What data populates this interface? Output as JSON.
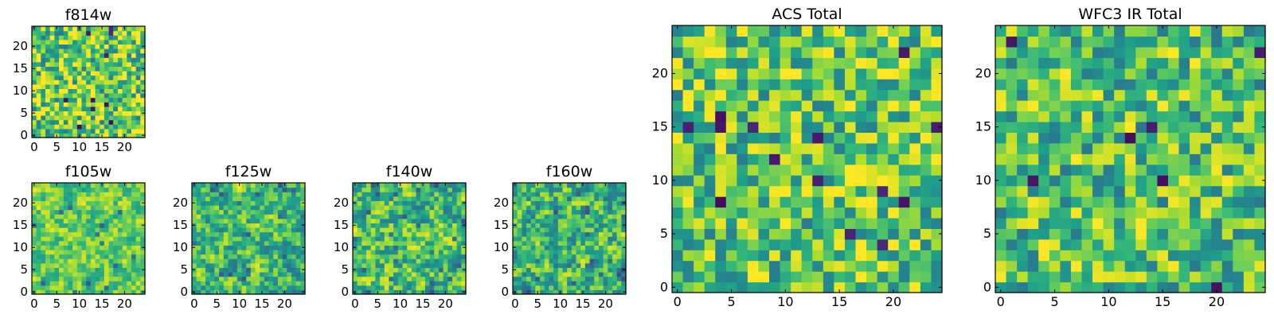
{
  "figure": {
    "colormap": "viridis",
    "colors": {
      "viridis": [
        "#440154",
        "#482878",
        "#3e4989",
        "#31688e",
        "#26828e",
        "#1f9e89",
        "#35b779",
        "#6ece58",
        "#b5de2b",
        "#fde725"
      ],
      "axis": "#000000",
      "background": "#ffffff"
    }
  },
  "chart_data": [
    {
      "id": "f814w",
      "type": "heatmap",
      "title": "f814w",
      "grid_size": [
        25,
        25
      ],
      "xlim": [
        0,
        24
      ],
      "ylim": [
        0,
        24
      ],
      "xticks": [
        "0",
        "5",
        "10",
        "15",
        "20"
      ],
      "yticks": [
        "0",
        "5",
        "10",
        "15",
        "20"
      ],
      "seed": 11,
      "mean": 0.75,
      "spread": 0.42,
      "dark_frac": 0.02,
      "smooth": 0
    },
    {
      "id": "acs-total",
      "type": "heatmap",
      "title": "ACS Total",
      "grid_size": [
        25,
        25
      ],
      "xlim": [
        0,
        24
      ],
      "ylim": [
        0,
        24
      ],
      "xticks": [
        "0",
        "5",
        "10",
        "15",
        "20"
      ],
      "yticks": [
        "0",
        "5",
        "10",
        "15",
        "20"
      ],
      "seed": 23,
      "mean": 0.74,
      "spread": 0.4,
      "dark_frac": 0.015,
      "smooth": 0
    },
    {
      "id": "wfc3-ir-total",
      "type": "heatmap",
      "title": "WFC3 IR Total",
      "grid_size": [
        25,
        25
      ],
      "xlim": [
        0,
        24
      ],
      "ylim": [
        0,
        24
      ],
      "xticks": [
        "0",
        "5",
        "10",
        "15",
        "20"
      ],
      "yticks": [
        "0",
        "5",
        "10",
        "15",
        "20"
      ],
      "seed": 37,
      "mean": 0.7,
      "spread": 0.38,
      "dark_frac": 0.015,
      "smooth": 0
    },
    {
      "id": "f105w",
      "type": "heatmap",
      "title": "f105w",
      "grid_size": [
        25,
        25
      ],
      "xlim": [
        0,
        24
      ],
      "ylim": [
        0,
        24
      ],
      "xticks": [
        "0",
        "5",
        "10",
        "15",
        "20"
      ],
      "yticks": [
        "0",
        "5",
        "10",
        "15",
        "20"
      ],
      "seed": 41,
      "mean": 0.76,
      "spread": 0.38,
      "dark_frac": 0.02,
      "smooth": 1
    },
    {
      "id": "f125w",
      "type": "heatmap",
      "title": "f125w",
      "grid_size": [
        25,
        25
      ],
      "xlim": [
        0,
        24
      ],
      "ylim": [
        0,
        24
      ],
      "xticks": [
        "0",
        "5",
        "10",
        "15",
        "20"
      ],
      "yticks": [
        "0",
        "5",
        "10",
        "15",
        "20"
      ],
      "seed": 53,
      "mean": 0.68,
      "spread": 0.5,
      "dark_frac": 0.03,
      "smooth": 1
    },
    {
      "id": "f140w",
      "type": "heatmap",
      "title": "f140w",
      "grid_size": [
        25,
        25
      ],
      "xlim": [
        0,
        24
      ],
      "ylim": [
        0,
        24
      ],
      "xticks": [
        "0",
        "5",
        "10",
        "15",
        "20"
      ],
      "yticks": [
        "0",
        "5",
        "10",
        "15",
        "20"
      ],
      "seed": 67,
      "mean": 0.7,
      "spread": 0.5,
      "dark_frac": 0.03,
      "smooth": 1
    },
    {
      "id": "f160w",
      "type": "heatmap",
      "title": "f160w",
      "grid_size": [
        25,
        25
      ],
      "xlim": [
        0,
        24
      ],
      "ylim": [
        0,
        24
      ],
      "xticks": [
        "0",
        "5",
        "10",
        "15",
        "20"
      ],
      "yticks": [
        "0",
        "5",
        "10",
        "15",
        "20"
      ],
      "seed": 79,
      "mean": 0.66,
      "spread": 0.52,
      "dark_frac": 0.035,
      "smooth": 1
    }
  ]
}
